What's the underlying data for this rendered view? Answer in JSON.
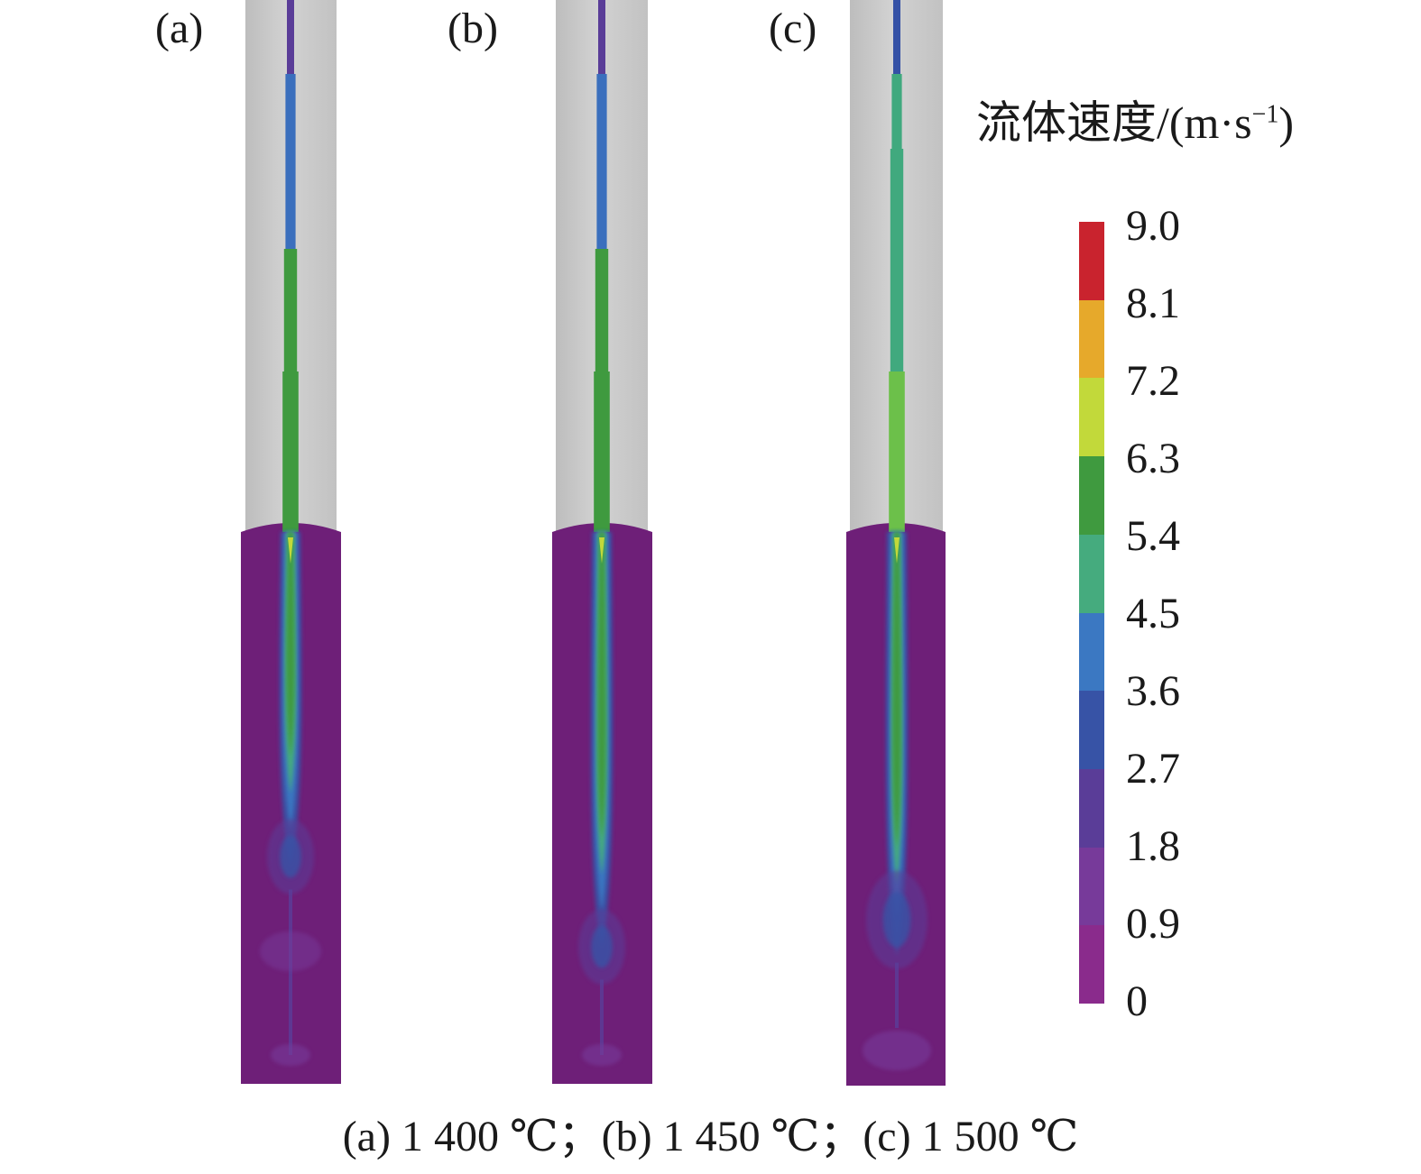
{
  "panels": [
    {
      "label": "(a)",
      "jet_profile": [
        1.9,
        2.8,
        3.6,
        4.5,
        5.4,
        5.6
      ],
      "colors": [
        "#3c54a4",
        "#3c54a4",
        "#3b6fbd",
        "#40a97e",
        "#3f9a3f",
        "#3f9a3f"
      ]
    },
    {
      "label": "(b)",
      "jet_profile": [
        2.2,
        3.0,
        3.6,
        4.5,
        5.6,
        5.8
      ],
      "colors": [
        "#3c54a4",
        "#3c54a4",
        "#3b6fbd",
        "#40a97e",
        "#3f9a3f",
        "#3f9a3f"
      ]
    },
    {
      "label": "(c)",
      "jet_profile": [
        2.6,
        3.1,
        4.6,
        4.7,
        6.0,
        6.2
      ],
      "colors": [
        "#3451a6",
        "#3451a6",
        "#40a97e",
        "#40a97e",
        "#6cc04a",
        "#6cc04a"
      ]
    }
  ],
  "colorbar": {
    "title": "流体速度/(m·s",
    "title_sup": "−1",
    "title_end": ")",
    "ticks": [
      "9.0",
      "8.1",
      "7.2",
      "6.3",
      "5.4",
      "4.5",
      "3.6",
      "2.7",
      "1.8",
      "0.9",
      "0"
    ],
    "colors_top_to_bottom": [
      "#c9232e",
      "#e6a92b",
      "#c2d93a",
      "#3f9a3f",
      "#45ab7e",
      "#3b78c2",
      "#3753a6",
      "#5a3d98",
      "#773a9a",
      "#8a2b8c"
    ]
  },
  "caption": "(a) 1 400 ℃；(b) 1 450 ℃；(c) 1 500 ℃",
  "colors": {
    "tube_gray": "#c6c6c6",
    "tube_highlight": "#d4d4d4",
    "melt_purple": "#6e1f78"
  }
}
